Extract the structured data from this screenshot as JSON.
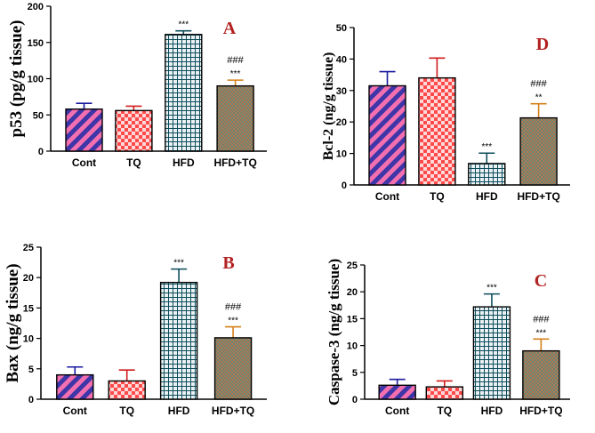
{
  "chart_data": [
    {
      "id": "A",
      "type": "bar",
      "panel_letter": "A",
      "ylabel": "p53 (pg/g tissue)",
      "ylim": [
        0,
        200
      ],
      "yticks": [
        0,
        50,
        100,
        150,
        200
      ],
      "categories": [
        "Cont",
        "TQ",
        "HFD",
        "HFD+TQ"
      ],
      "values": [
        58,
        56,
        161,
        90
      ],
      "errors": [
        8,
        6,
        5,
        8
      ],
      "significance": [
        "",
        "",
        "***",
        "***"
      ],
      "hash_marks": [
        "",
        "",
        "",
        "###"
      ]
    },
    {
      "id": "D",
      "type": "bar",
      "panel_letter": "D",
      "ylabel": "Bcl-2 (ng/g tissue)",
      "ylim": [
        0,
        50
      ],
      "yticks": [
        0,
        10,
        20,
        30,
        40,
        50
      ],
      "categories": [
        "Cont",
        "TQ",
        "HFD",
        "HFD+TQ"
      ],
      "values": [
        31.5,
        34,
        6.8,
        21.3
      ],
      "errors": [
        4.5,
        6.3,
        3.3,
        4.5
      ],
      "significance": [
        "",
        "",
        "***",
        "**"
      ],
      "hash_marks": [
        "",
        "",
        "",
        "###"
      ]
    },
    {
      "id": "B",
      "type": "bar",
      "panel_letter": "B",
      "ylabel": "Bax (ng/g tissue)",
      "ylim": [
        0,
        25
      ],
      "yticks": [
        0,
        5,
        10,
        15,
        20,
        25
      ],
      "categories": [
        "Cont",
        "TQ",
        "HFD",
        "HFD+TQ"
      ],
      "values": [
        4,
        3,
        19.2,
        10.1
      ],
      "errors": [
        1.3,
        1.8,
        2.2,
        1.8
      ],
      "significance": [
        "",
        "",
        "***",
        "***"
      ],
      "hash_marks": [
        "",
        "",
        "",
        "###"
      ]
    },
    {
      "id": "C",
      "type": "bar",
      "panel_letter": "C",
      "ylabel": "Caspase-3 (ng/g tissue)",
      "ylim": [
        0,
        25
      ],
      "yticks": [
        0,
        5,
        10,
        15,
        20,
        25
      ],
      "categories": [
        "Cont",
        "TQ",
        "HFD",
        "HFD+TQ"
      ],
      "values": [
        2.6,
        2.3,
        17.2,
        9
      ],
      "errors": [
        1.1,
        1.1,
        2.4,
        2.2
      ],
      "significance": [
        "",
        "",
        "***",
        "***"
      ],
      "hash_marks": [
        "",
        "",
        "",
        "###"
      ]
    }
  ],
  "colors": {
    "cont_stripe_a": "#3d35a8",
    "cont_stripe_b": "#f46fb0",
    "cont_error": "#1a1aa0",
    "tq_base": "#ff4a4a",
    "tq_check": "#ffd9d9",
    "tq_error": "#d11c1c",
    "hfd_base": "#0e4d5c",
    "hfd_grid": "#ffffff",
    "hfd_error": "#0e4d5c",
    "hfdtq_base": "#b07a55",
    "hfdtq_dot": "#3a8a82",
    "hfdtq_error": "#d48018",
    "letter": "#b22222"
  }
}
